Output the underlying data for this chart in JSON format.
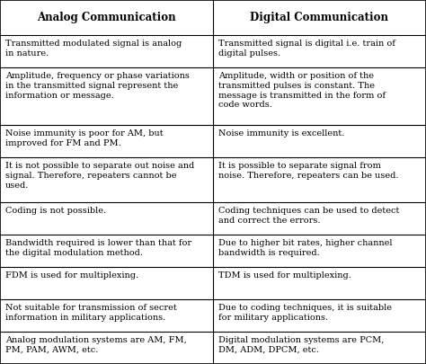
{
  "headers": [
    "Analog Communication",
    "Digital Communication"
  ],
  "rows": [
    [
      "Transmitted modulated signal is analog\nin nature.",
      "Transmitted signal is digital i.e. train of\ndigital pulses."
    ],
    [
      "Amplitude, frequency or phase variations\nin the transmitted signal represent the\ninformation or message.",
      "Amplitude, width or position of the\ntransmitted pulses is constant. The\nmessage is transmitted in the form of\ncode words."
    ],
    [
      "Noise immunity is poor for AM, but\nimproved for FM and PM.",
      "Noise immunity is excellent."
    ],
    [
      "It is not possible to separate out noise and\nsignal. Therefore, repeaters cannot be\nused.",
      "It is possible to separate signal from\nnoise. Therefore, repeaters can be used."
    ],
    [
      "Coding is not possible.",
      "Coding techniques can be used to detect\nand correct the errors."
    ],
    [
      "Bandwidth required is lower than that for\nthe digital modulation method.",
      "Due to higher bit rates, higher channel\nbandwidth is required."
    ],
    [
      "FDM is used for multiplexing.",
      "TDM is used for multiplexing."
    ],
    [
      "Not suitable for transmission of secret\ninformation in military applications.",
      "Due to coding techniques, it is suitable\nfor military applications."
    ],
    [
      "Analog modulation systems are AM, FM,\nPM, PAM, AWM, etc.",
      "Digital modulation systems are PCM,\nDM, ADM, DPCM, etc."
    ]
  ],
  "bg_color": "#ffffff",
  "border_color": "#000000",
  "text_color": "#000000",
  "header_fontsize": 8.5,
  "cell_fontsize": 7.0,
  "fig_width": 4.74,
  "fig_height": 4.05,
  "dpi": 100,
  "row_line_counts": [
    2,
    4,
    2,
    3,
    2,
    2,
    2,
    2,
    2
  ],
  "header_lines": 2,
  "col_split": 0.5
}
